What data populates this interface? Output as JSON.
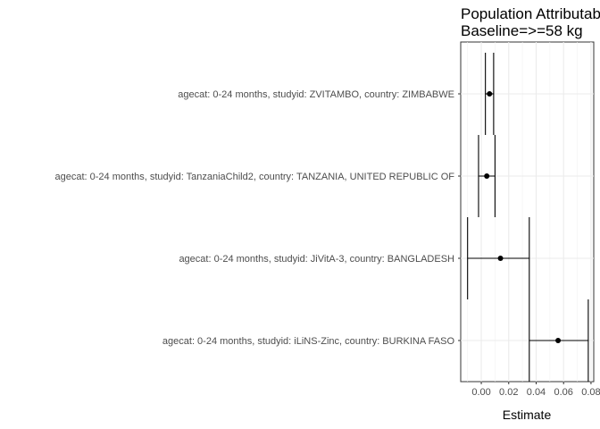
{
  "chart_data": {
    "type": "forest",
    "title_lines": [
      "Population Attributable Fraction",
      "Baseline=>=58 kg"
    ],
    "xlabel": "Estimate",
    "ylabel": "",
    "xlim": [
      -0.015,
      0.082
    ],
    "xticks": [
      0.0,
      0.02,
      0.04,
      0.06,
      0.08
    ],
    "xtick_labels": [
      "0.00",
      "0.02",
      "0.04",
      "0.06",
      "0.08"
    ],
    "grid": true,
    "categories": [
      "agecat: 0-24 months, studyid: ZVITAMBO, country: ZIMBABWE",
      "agecat: 0-24 months, studyid: TanzaniaChild2, country: TANZANIA, UNITED REPUBLIC OF",
      "agecat: 0-24 months, studyid: JiVitA-3, country: BANGLADESH",
      "agecat: 0-24 months, studyid: iLiNS-Zinc, country: BURKINA FASO"
    ],
    "estimates": [
      0.006,
      0.004,
      0.014,
      0.056
    ],
    "lower": [
      0.003,
      -0.002,
      -0.01,
      0.035
    ],
    "upper": [
      0.009,
      0.01,
      0.035,
      0.078
    ]
  }
}
